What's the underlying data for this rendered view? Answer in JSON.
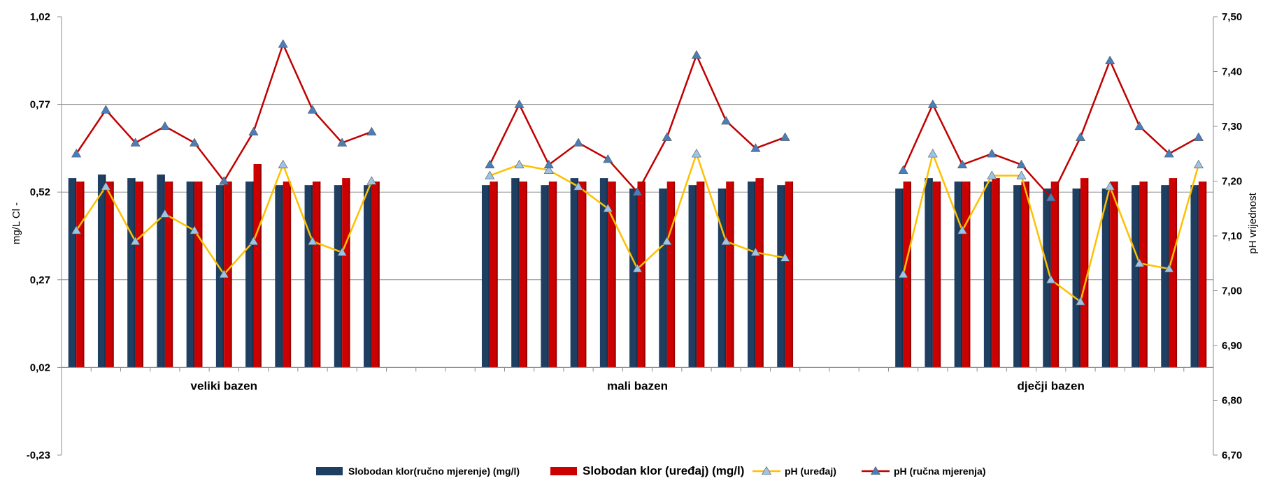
{
  "chart_data": {
    "type": "bar",
    "title": "",
    "ylabel": "mg/L Cl -",
    "y2label": "pH vrijednost",
    "ylim": [
      -0.23,
      1.02
    ],
    "y2lim": [
      6.7,
      7.5
    ],
    "yticks": [
      "1,02",
      "0,77",
      "0,52",
      "0,27",
      "0,02",
      "-0,23"
    ],
    "y2ticks": [
      "7,50",
      "7,40",
      "7,30",
      "7,20",
      "7,10",
      "7,00",
      "6,90",
      "6,80",
      "6,70"
    ],
    "grid": true,
    "legend_position": "bottom",
    "groups": [
      {
        "name": "veliki bazen",
        "manual_cl": [
          0.56,
          0.57,
          0.56,
          0.57,
          0.55,
          0.54,
          0.55,
          0.54,
          0.54,
          0.54,
          0.54
        ],
        "device_cl": [
          0.55,
          0.55,
          0.55,
          0.55,
          0.55,
          0.55,
          0.6,
          0.55,
          0.55,
          0.56,
          0.55
        ],
        "ph_device": [
          7.11,
          7.19,
          7.09,
          7.14,
          7.11,
          7.03,
          7.09,
          7.23,
          7.09,
          7.07,
          7.2
        ],
        "ph_manual": [
          7.25,
          7.33,
          7.27,
          7.3,
          7.27,
          7.2,
          7.29,
          7.45,
          7.33,
          7.27,
          7.29
        ]
      },
      {
        "name": "mali bazen",
        "manual_cl": [
          0.54,
          0.56,
          0.54,
          0.56,
          0.56,
          0.53,
          0.53,
          0.54,
          0.53,
          0.55,
          0.54
        ],
        "device_cl": [
          0.55,
          0.55,
          0.55,
          0.55,
          0.55,
          0.55,
          0.55,
          0.55,
          0.55,
          0.56,
          0.55
        ],
        "ph_device": [
          7.21,
          7.23,
          7.22,
          7.19,
          7.15,
          7.04,
          7.09,
          7.25,
          7.09,
          7.07,
          7.06
        ],
        "ph_manual": [
          7.23,
          7.34,
          7.23,
          7.27,
          7.24,
          7.18,
          7.28,
          7.43,
          7.31,
          7.26,
          7.28
        ]
      },
      {
        "name": "dječji bazen",
        "manual_cl": [
          0.53,
          0.56,
          0.55,
          0.55,
          0.54,
          0.53,
          0.53,
          0.53,
          0.54,
          0.54,
          0.54
        ],
        "device_cl": [
          0.55,
          0.55,
          0.55,
          0.56,
          0.55,
          0.55,
          0.56,
          0.55,
          0.55,
          0.56,
          0.55
        ],
        "ph_device": [
          7.03,
          7.25,
          7.11,
          7.21,
          7.21,
          7.02,
          6.98,
          7.19,
          7.05,
          7.04,
          7.23
        ],
        "ph_manual": [
          7.22,
          7.34,
          7.23,
          7.25,
          7.23,
          7.17,
          7.28,
          7.42,
          7.3,
          7.25,
          7.28
        ]
      }
    ],
    "series": [
      {
        "key": "manual_cl",
        "name": "Slobodan klor(ručno  mjerenje) (mg/l)",
        "type": "bar",
        "axis": "left",
        "color": "#1f3f62"
      },
      {
        "key": "device_cl",
        "name": "Slobodan klor (uređaj) (mg/l)",
        "type": "bar",
        "axis": "left",
        "color": "#cc0000"
      },
      {
        "key": "ph_device",
        "name": "pH (uređaj)",
        "type": "line",
        "axis": "right",
        "color": "#ffc000",
        "marker_color": "#9dc3e6"
      },
      {
        "key": "ph_manual",
        "name": "pH (ručna mjerenja)",
        "type": "line",
        "axis": "right",
        "color": "#c00000",
        "marker_color": "#4a7ebb"
      }
    ]
  }
}
